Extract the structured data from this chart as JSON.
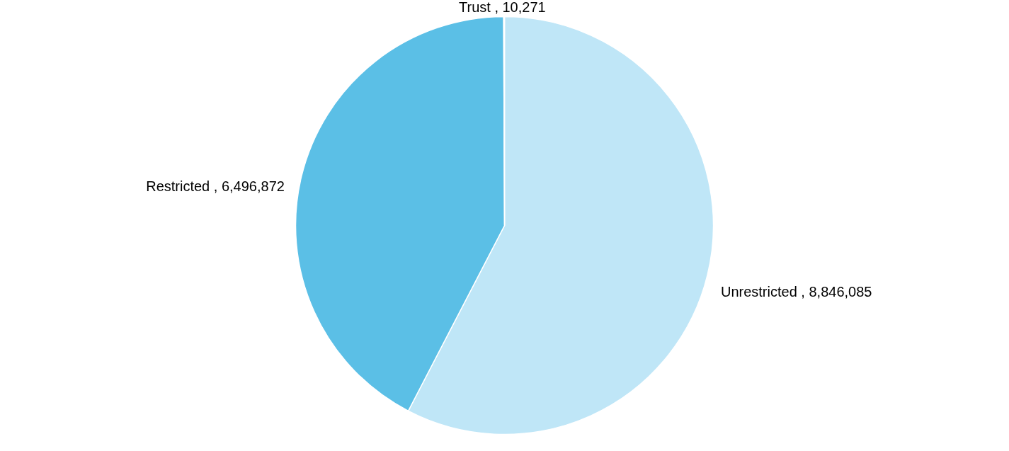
{
  "chart_data": {
    "type": "pie",
    "categories": [
      "Unrestricted",
      "Restricted",
      "Trust"
    ],
    "values": [
      8846085,
      6496872,
      10271
    ],
    "value_labels": [
      "8,846,085",
      "6,496,872",
      "10,271"
    ],
    "colors": [
      "#bfe6f7",
      "#5bbfe6",
      "#29abe2"
    ]
  }
}
